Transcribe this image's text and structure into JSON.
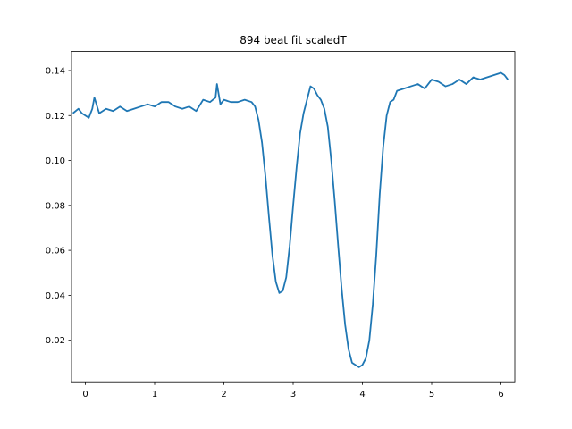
{
  "chart_data": {
    "type": "line",
    "title": "894 beat fit scaledT",
    "xlabel": "",
    "ylabel": "",
    "xlim": [
      -0.2,
      6.2
    ],
    "ylim": [
      0.0015,
      0.1485
    ],
    "xticks": [
      0,
      1,
      2,
      3,
      4,
      5,
      6
    ],
    "xtick_labels": [
      "0",
      "1",
      "2",
      "3",
      "4",
      "5",
      "6"
    ],
    "yticks": [
      0.02,
      0.04,
      0.06,
      0.08,
      0.1,
      0.12,
      0.14
    ],
    "ytick_labels": [
      "0.02",
      "0.04",
      "0.06",
      "0.08",
      "0.10",
      "0.12",
      "0.14"
    ],
    "grid": false,
    "series": [
      {
        "color": "#1f77b4",
        "x": [
          -0.18,
          -0.1,
          -0.05,
          0.0,
          0.05,
          0.1,
          0.13,
          0.2,
          0.3,
          0.4,
          0.5,
          0.6,
          0.7,
          0.8,
          0.9,
          1.0,
          1.1,
          1.2,
          1.3,
          1.4,
          1.5,
          1.6,
          1.7,
          1.8,
          1.88,
          1.9,
          1.95,
          2.0,
          2.1,
          2.2,
          2.3,
          2.4,
          2.45,
          2.5,
          2.55,
          2.6,
          2.65,
          2.7,
          2.75,
          2.8,
          2.85,
          2.9,
          2.95,
          3.0,
          3.05,
          3.1,
          3.15,
          3.2,
          3.25,
          3.3,
          3.35,
          3.4,
          3.45,
          3.5,
          3.55,
          3.6,
          3.65,
          3.7,
          3.75,
          3.8,
          3.85,
          3.9,
          3.95,
          4.0,
          4.05,
          4.1,
          4.15,
          4.2,
          4.25,
          4.3,
          4.35,
          4.4,
          4.45,
          4.5,
          4.6,
          4.7,
          4.8,
          4.9,
          5.0,
          5.1,
          5.2,
          5.3,
          5.4,
          5.5,
          5.6,
          5.7,
          5.8,
          5.9,
          6.0,
          6.05,
          6.1
        ],
        "y": [
          0.121,
          0.123,
          0.121,
          0.12,
          0.119,
          0.123,
          0.128,
          0.121,
          0.123,
          0.122,
          0.124,
          0.122,
          0.123,
          0.124,
          0.125,
          0.124,
          0.126,
          0.126,
          0.124,
          0.123,
          0.124,
          0.122,
          0.127,
          0.126,
          0.128,
          0.134,
          0.125,
          0.127,
          0.126,
          0.126,
          0.127,
          0.126,
          0.124,
          0.118,
          0.108,
          0.093,
          0.075,
          0.058,
          0.046,
          0.041,
          0.042,
          0.048,
          0.062,
          0.08,
          0.097,
          0.112,
          0.121,
          0.127,
          0.133,
          0.132,
          0.129,
          0.127,
          0.123,
          0.115,
          0.1,
          0.082,
          0.062,
          0.043,
          0.027,
          0.016,
          0.01,
          0.009,
          0.008,
          0.009,
          0.012,
          0.02,
          0.036,
          0.058,
          0.085,
          0.106,
          0.12,
          0.126,
          0.127,
          0.131,
          0.132,
          0.133,
          0.134,
          0.132,
          0.136,
          0.135,
          0.133,
          0.134,
          0.136,
          0.134,
          0.137,
          0.136,
          0.137,
          0.138,
          0.139,
          0.138,
          0.136
        ]
      }
    ]
  }
}
